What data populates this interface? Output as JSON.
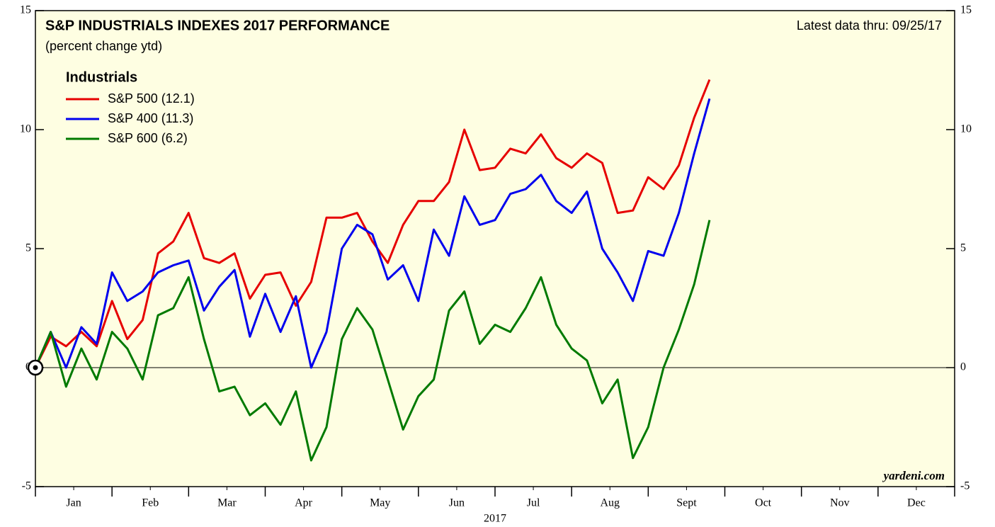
{
  "chart_data": {
    "type": "line",
    "title": "S&P INDUSTRIALS INDEXES 2017 PERFORMANCE",
    "subtitle": "(percent change ytd)",
    "annotation": "Latest data thru: 09/25/17",
    "legend_title": "Industrials",
    "source": "yardeni.com",
    "xlabel": "2017",
    "x": [
      0,
      0.2,
      0.4,
      0.6,
      0.8,
      1.0,
      1.2,
      1.4,
      1.6,
      1.8,
      2.0,
      2.2,
      2.4,
      2.6,
      2.8,
      3.0,
      3.2,
      3.4,
      3.6,
      3.8,
      4.0,
      4.2,
      4.4,
      4.6,
      4.8,
      5.0,
      5.2,
      5.4,
      5.6,
      5.8,
      6.0,
      6.2,
      6.4,
      6.6,
      6.8,
      7.0,
      7.2,
      7.4,
      7.6,
      7.8,
      8.0,
      8.2,
      8.4,
      8.6,
      8.8
    ],
    "xlim": [
      0,
      12
    ],
    "xticks": [
      {
        "value": 0.5,
        "label": "Jan"
      },
      {
        "value": 1.5,
        "label": "Feb"
      },
      {
        "value": 2.5,
        "label": "Mar"
      },
      {
        "value": 3.5,
        "label": "Apr"
      },
      {
        "value": 4.5,
        "label": "May"
      },
      {
        "value": 5.5,
        "label": "Jun"
      },
      {
        "value": 6.5,
        "label": "Jul"
      },
      {
        "value": 7.5,
        "label": "Aug"
      },
      {
        "value": 8.5,
        "label": "Sept"
      },
      {
        "value": 9.5,
        "label": "Oct"
      },
      {
        "value": 10.5,
        "label": "Nov"
      },
      {
        "value": 11.5,
        "label": "Dec"
      }
    ],
    "ylim": [
      -5,
      15
    ],
    "yticks": [
      -5,
      0,
      5,
      10,
      15
    ],
    "y2lim": [
      -5,
      15
    ],
    "y2ticks": [
      -5,
      0,
      5,
      10,
      15
    ],
    "legend": "upper left",
    "series": [
      {
        "name": "S&P 500 (12.1)",
        "color": "#e60000",
        "values": [
          0,
          1.3,
          0.9,
          1.5,
          0.9,
          2.8,
          1.2,
          2.0,
          4.8,
          5.3,
          6.5,
          4.6,
          4.4,
          4.8,
          2.9,
          3.9,
          4.0,
          2.6,
          3.6,
          6.3,
          6.3,
          6.5,
          5.3,
          4.4,
          6.0,
          7.0,
          7.0,
          7.8,
          10.0,
          8.3,
          8.4,
          9.2,
          9.0,
          9.8,
          8.8,
          8.4,
          9.0,
          8.6,
          6.5,
          6.6,
          8.0,
          7.5,
          8.5,
          10.5,
          12.1
        ]
      },
      {
        "name": "S&P 400 (11.3)",
        "color": "#0000ee",
        "values": [
          0,
          1.5,
          0.0,
          1.7,
          1.0,
          4.0,
          2.8,
          3.2,
          4.0,
          4.3,
          4.5,
          2.4,
          3.4,
          4.1,
          1.3,
          3.1,
          1.5,
          3.0,
          0.0,
          1.5,
          5.0,
          6.0,
          5.6,
          3.7,
          4.3,
          2.8,
          5.8,
          4.7,
          7.2,
          6.0,
          6.2,
          7.3,
          7.5,
          8.1,
          7.0,
          6.5,
          7.4,
          5.0,
          4.0,
          2.8,
          4.9,
          4.7,
          6.5,
          9.0,
          11.3
        ]
      },
      {
        "name": "S&P 600 (6.2)",
        "color": "#007a00",
        "values": [
          0,
          1.5,
          -0.8,
          0.8,
          -0.5,
          1.5,
          0.8,
          -0.5,
          2.2,
          2.5,
          3.8,
          1.2,
          -1.0,
          -0.8,
          -2.0,
          -1.5,
          -2.4,
          -1.0,
          -3.9,
          -2.5,
          1.2,
          2.5,
          1.6,
          -0.5,
          -2.6,
          -1.2,
          -0.5,
          2.4,
          3.2,
          1.0,
          1.8,
          1.5,
          2.5,
          3.8,
          1.8,
          0.8,
          0.3,
          -1.5,
          -0.5,
          -3.8,
          -2.5,
          0.0,
          1.6,
          3.5,
          6.2
        ]
      }
    ]
  }
}
